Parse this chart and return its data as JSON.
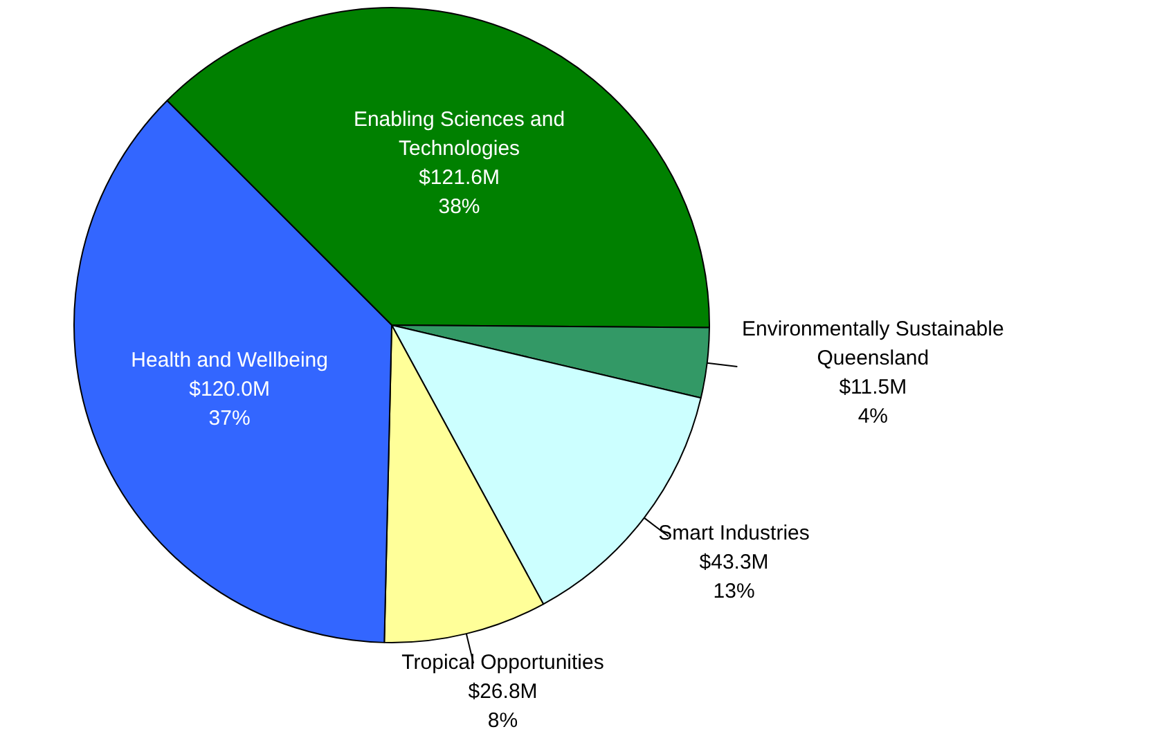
{
  "chart_data": {
    "type": "pie",
    "categories": [
      "Enabling Sciences and Technologies",
      "Environmentally Sustainable Queensland",
      "Smart Industries",
      "Tropical Opportunities",
      "Health and Wellbeing"
    ],
    "values": [
      121.6,
      11.5,
      43.3,
      26.8,
      120.0
    ],
    "colors": [
      "#008000",
      "#339966",
      "#ccffff",
      "#ffff99",
      "#3366ff"
    ],
    "value_labels": [
      "$121.6M",
      "$11.5M",
      "$43.3M",
      "$26.8M",
      "$120.0M"
    ],
    "annotations": [
      {
        "text": "38%",
        "x": "Enabling Sciences and Technologies"
      },
      {
        "text": "4%",
        "x": "Environmentally Sustainable Queensland"
      },
      {
        "text": "13%",
        "x": "Smart Industries"
      },
      {
        "text": "8%",
        "x": "Tropical Opportunities"
      },
      {
        "text": "37%",
        "x": "Health and Wellbeing"
      }
    ],
    "legend": false
  }
}
